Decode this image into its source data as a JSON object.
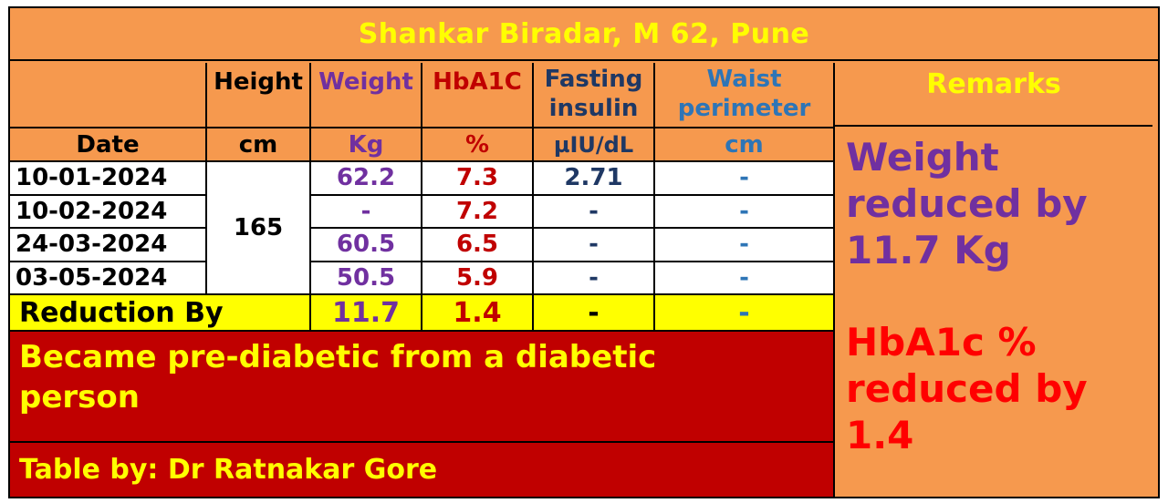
{
  "title": "Shankar Biradar, M 62, Pune",
  "colors": {
    "orange": "#f6994e",
    "yellow": "#ffff00",
    "dark_red": "#c00000",
    "purple": "#7030a0",
    "crimson": "#c00000",
    "navy": "#1f3864",
    "blue": "#2e75b6",
    "bright_red": "#ff0000"
  },
  "headers": {
    "date": "Date",
    "height": "Height",
    "weight": "Weight",
    "hba1c": "HbA1C",
    "fasting_line1": "Fasting",
    "fasting_line2": "insulin",
    "waist_line1": "Waist",
    "waist_line2": "perimeter",
    "remarks": "Remarks"
  },
  "units": {
    "height": "cm",
    "weight": "Kg",
    "hba1c": "%",
    "fasting": "µIU/dL",
    "waist": "cm"
  },
  "height_value": "165",
  "rows": [
    {
      "date": "10-01-2024",
      "weight": "62.2",
      "hba1c": "7.3",
      "fasting": "2.71",
      "waist": "-"
    },
    {
      "date": "10-02-2024",
      "weight": "-",
      "hba1c": "7.2",
      "fasting": "-",
      "waist": "-"
    },
    {
      "date": "24-03-2024",
      "weight": "60.5",
      "hba1c": "6.5",
      "fasting": "-",
      "waist": "-"
    },
    {
      "date": "03-05-2024",
      "weight": "50.5",
      "hba1c": "5.9",
      "fasting": "-",
      "waist": "-"
    }
  ],
  "reduction": {
    "label": "Reduction By",
    "weight": "11.7",
    "hba1c": "1.4",
    "fasting": "-",
    "waist": "-"
  },
  "conclusion": "Became pre-diabetic from a diabetic person",
  "credit": "Table by: Dr Ratnakar Gore",
  "remarks": {
    "weight_line1": "Weight",
    "weight_line2": "reduced by",
    "weight_line3": "11.7 Kg",
    "hba1c_line1": "HbA1c %",
    "hba1c_line2": "reduced by",
    "hba1c_line3": "1.4"
  }
}
